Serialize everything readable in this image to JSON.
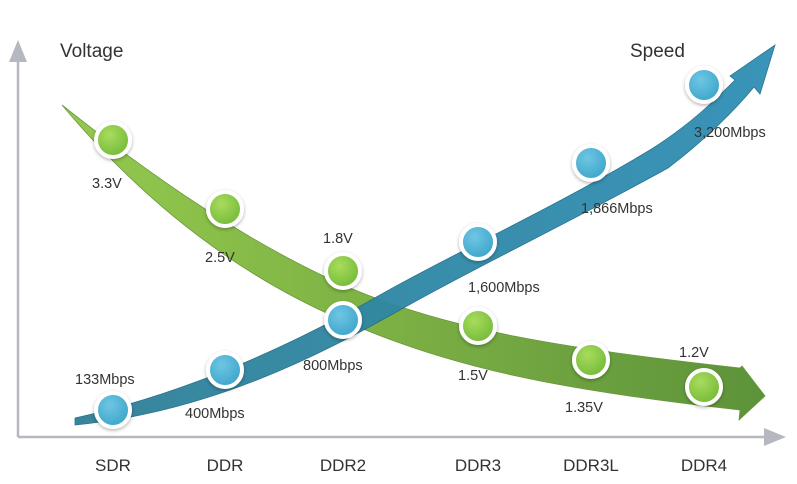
{
  "chart_data": {
    "type": "line",
    "categories": [
      "SDR",
      "DDR",
      "DDR2",
      "DDR3",
      "DDR3L",
      "DDR4"
    ],
    "y_left_label": "Voltage",
    "y_right_label": "Speed",
    "series": [
      {
        "name": "Voltage",
        "values": [
          3.3,
          2.5,
          1.8,
          1.5,
          1.35,
          1.2
        ],
        "labels": [
          "3.3V",
          "2.5V",
          "1.8V",
          "1.5V",
          "1.35V",
          "1.2V"
        ],
        "color": "#7bb63a"
      },
      {
        "name": "Speed",
        "values": [
          133,
          400,
          800,
          1600,
          1866,
          3200
        ],
        "labels": [
          "133Mbps",
          "400Mbps",
          "800Mbps",
          "1,600Mbps",
          "1,866Mbps",
          "3,200Mbps"
        ],
        "color": "#2f8fae"
      }
    ],
    "grid": false,
    "legend": "none"
  }
}
